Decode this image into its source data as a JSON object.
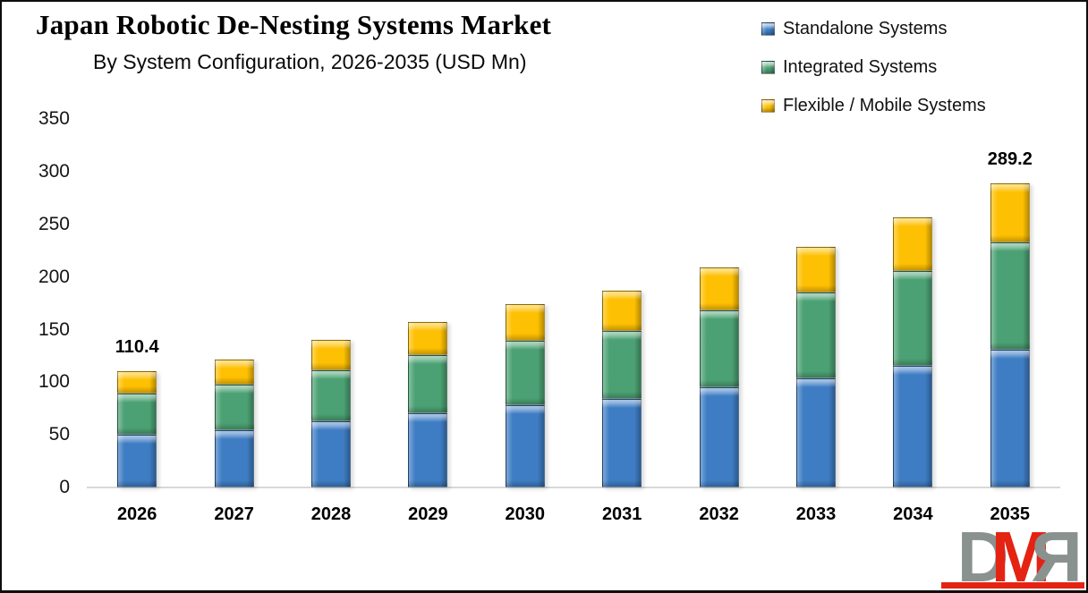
{
  "header": {
    "title": "Japan Robotic De-Nesting Systems Market",
    "subtitle": "By System Configuration, 2026-2035 (USD Mn)"
  },
  "legend": [
    {
      "label": "Standalone Systems",
      "color": "#3e7dc4"
    },
    {
      "label": "Integrated Systems",
      "color": "#4ba173"
    },
    {
      "label": "Flexible / Mobile Systems",
      "color": "#fec002"
    }
  ],
  "chart_data": {
    "type": "bar",
    "stacked": true,
    "title": "Japan Robotic De-Nesting Systems Market",
    "subtitle": "By System Configuration, 2026-2035 (USD Mn)",
    "unit": "USD Mn",
    "categories": [
      "2026",
      "2027",
      "2028",
      "2029",
      "2030",
      "2031",
      "2032",
      "2033",
      "2034",
      "2035"
    ],
    "series": [
      {
        "name": "Standalone Systems",
        "color": "#3e7dc4",
        "values": [
          50.0,
          54.5,
          62.5,
          71.0,
          78.5,
          84.0,
          95.0,
          104.0,
          115.5,
          131.0
        ]
      },
      {
        "name": "Integrated Systems",
        "color": "#4ba173",
        "values": [
          39.0,
          43.0,
          48.5,
          55.0,
          61.0,
          65.0,
          73.0,
          81.0,
          90.5,
          102.0
        ]
      },
      {
        "name": "Flexible / Mobile Systems",
        "color": "#fec002",
        "values": [
          21.4,
          24.5,
          29.0,
          31.5,
          34.5,
          38.0,
          41.0,
          44.0,
          50.5,
          56.2
        ]
      }
    ],
    "totals": [
      110.4,
      122.0,
      140.0,
      157.5,
      174.0,
      187.0,
      209.0,
      229.0,
      256.5,
      289.2
    ],
    "shown_total_labels": {
      "0": "110.4",
      "9": "289.2"
    },
    "yticks": [
      0,
      50,
      100,
      150,
      200,
      250,
      300,
      350
    ],
    "ylim": [
      0,
      350
    ],
    "xlabel": "",
    "ylabel": "",
    "grid": false,
    "legend_position": "top-right"
  },
  "watermark": {
    "text": "DMR",
    "letters": [
      "D",
      "M",
      "R"
    ],
    "gray": "#8a9290",
    "red": "#e42313"
  }
}
